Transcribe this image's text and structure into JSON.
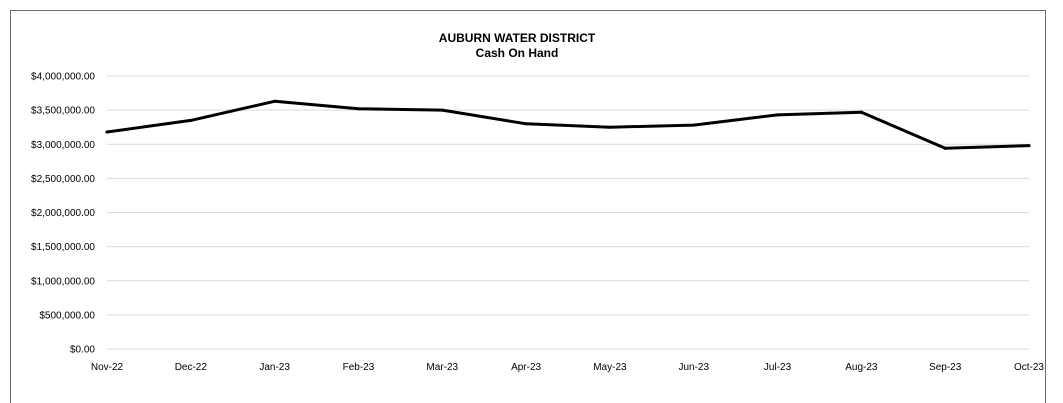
{
  "chart_data": {
    "type": "line",
    "title": "AUBURN WATER DISTRICT",
    "subtitle": "Cash On Hand",
    "xlabel": "",
    "ylabel": "",
    "categories": [
      "Nov-22",
      "Dec-22",
      "Jan-23",
      "Feb-23",
      "Mar-23",
      "Apr-23",
      "May-23",
      "Jun-23",
      "Jul-23",
      "Aug-23",
      "Sep-23",
      "Oct-23"
    ],
    "series": [
      {
        "values": [
          3180000,
          3350000,
          3630000,
          3520000,
          3500000,
          3300000,
          3250000,
          3280000,
          3430000,
          3470000,
          2940000,
          2980000
        ],
        "color": "#000000"
      }
    ],
    "ylim": [
      0,
      4000000
    ],
    "yticks": [
      {
        "value": 0,
        "label": "$0.00"
      },
      {
        "value": 500000,
        "label": "$500,000.00"
      },
      {
        "value": 1000000,
        "label": "$1,000,000.00"
      },
      {
        "value": 1500000,
        "label": "$1,500,000.00"
      },
      {
        "value": 2000000,
        "label": "$2,000,000.00"
      },
      {
        "value": 2500000,
        "label": "$2,500,000.00"
      },
      {
        "value": 3000000,
        "label": "$3,000,000.00"
      },
      {
        "value": 3500000,
        "label": "$3,500,000.00"
      },
      {
        "value": 4000000,
        "label": "$4,000,000.00"
      }
    ],
    "grid": true,
    "legend": "none"
  }
}
